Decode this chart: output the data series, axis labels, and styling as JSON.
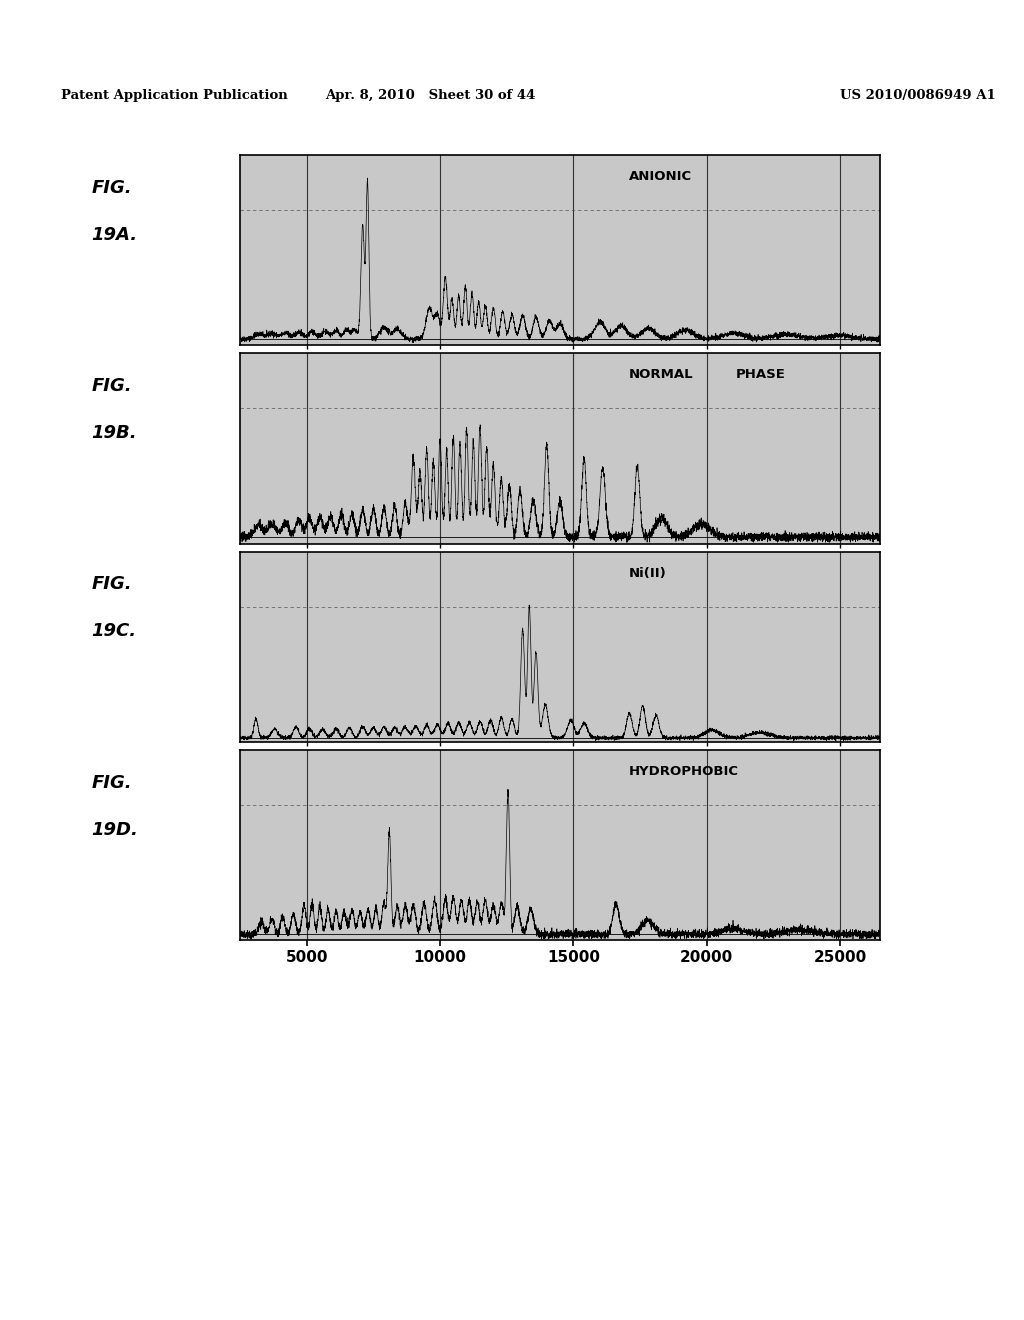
{
  "header_left": "Patent Application Publication",
  "header_mid": "Apr. 8, 2010   Sheet 30 of 44",
  "header_right": "US 2010/0086949 A1",
  "panel_labels": [
    "FIG.\n19A.",
    "FIG.\n19B.",
    "FIG.\n19C.",
    "FIG.\n19D."
  ],
  "panel_titles": [
    "ANIONIC",
    "NORMAL  PHASE",
    "Ni(II)",
    "HYDROPHOBIC"
  ],
  "x_ticks": [
    5000,
    10000,
    15000,
    20000,
    25000
  ],
  "x_min": 2500,
  "x_max": 26500,
  "background_color": "#ffffff",
  "panel_bg": "#c8c8c8",
  "line_color": "#000000",
  "grid_color": "#555555"
}
